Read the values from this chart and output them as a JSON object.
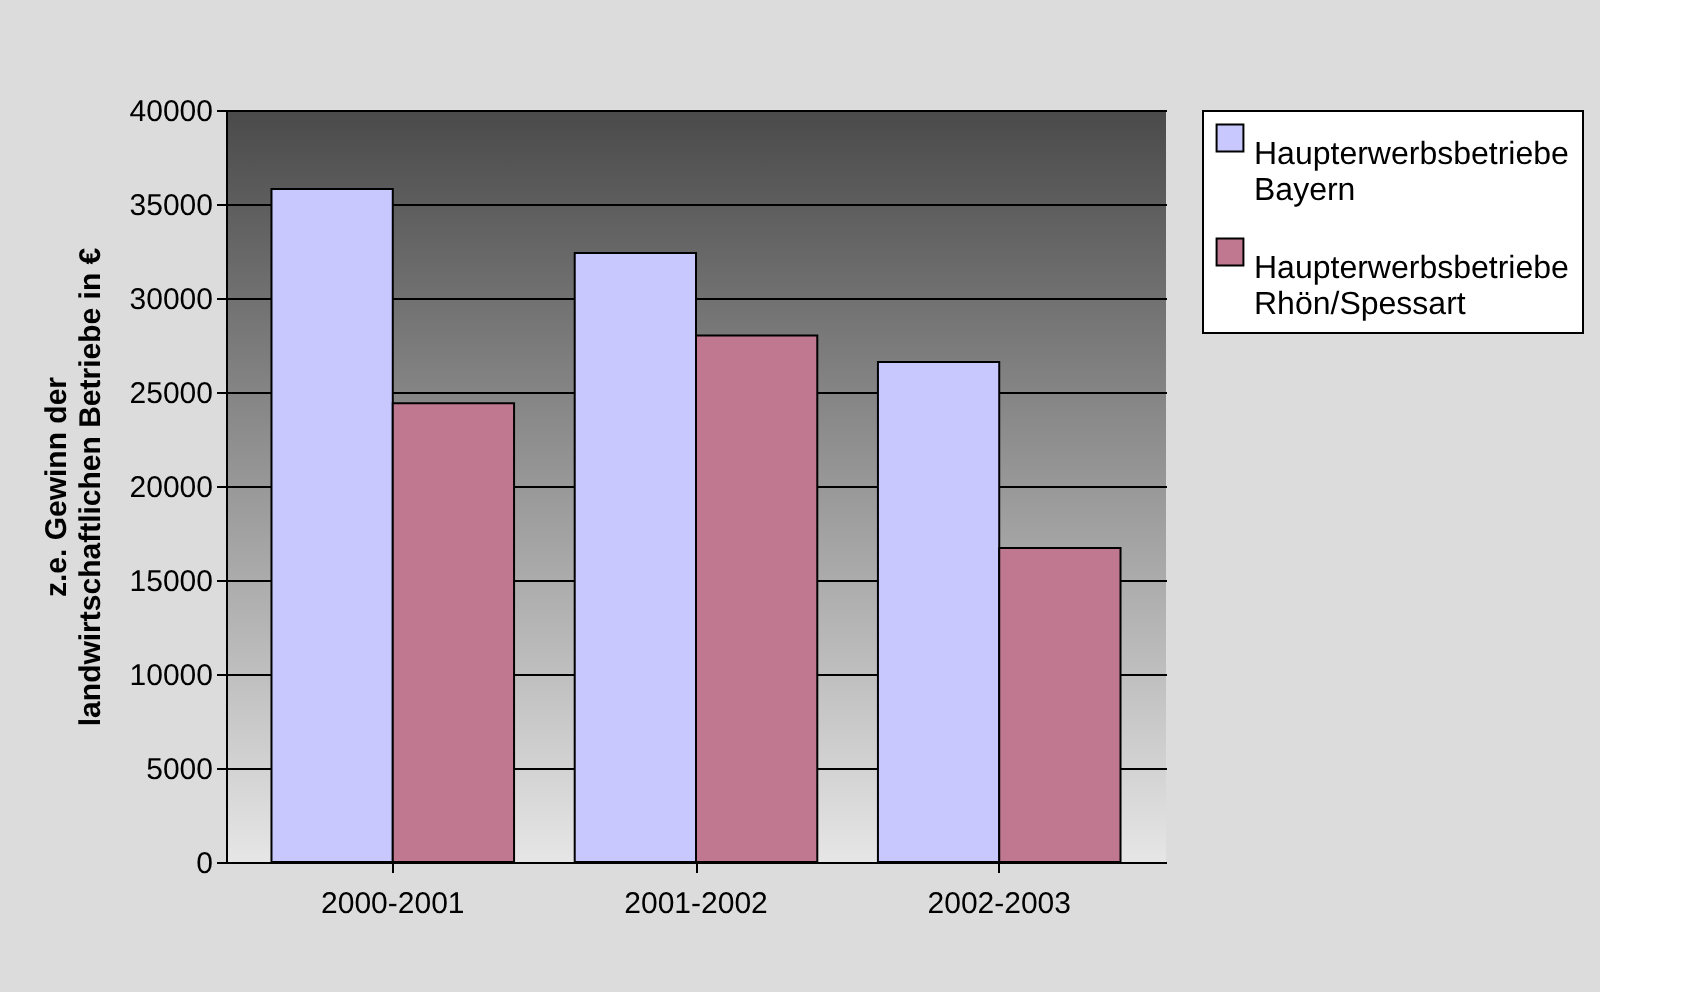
{
  "chart_data": {
    "type": "bar",
    "ylabel": "z.e. Gewinn der landwirtschaftlichen Betriebe in €",
    "categories": [
      "2000-2001",
      "2001-2002",
      "2002-2003"
    ],
    "series": [
      {
        "name": "Haupterwerbsbetriebe Bayern",
        "color": "#c8c8ff",
        "values": [
          35800,
          32400,
          26600
        ]
      },
      {
        "name": "Haupterwerbsbetriebe Rhön/Spessart",
        "color": "#c07890",
        "values": [
          24400,
          28000,
          16700
        ]
      }
    ],
    "ylim": [
      0,
      40000
    ],
    "yticks": [
      0,
      5000,
      10000,
      15000,
      20000,
      25000,
      30000,
      35000,
      40000
    ],
    "grid": "y",
    "legend": "right"
  }
}
